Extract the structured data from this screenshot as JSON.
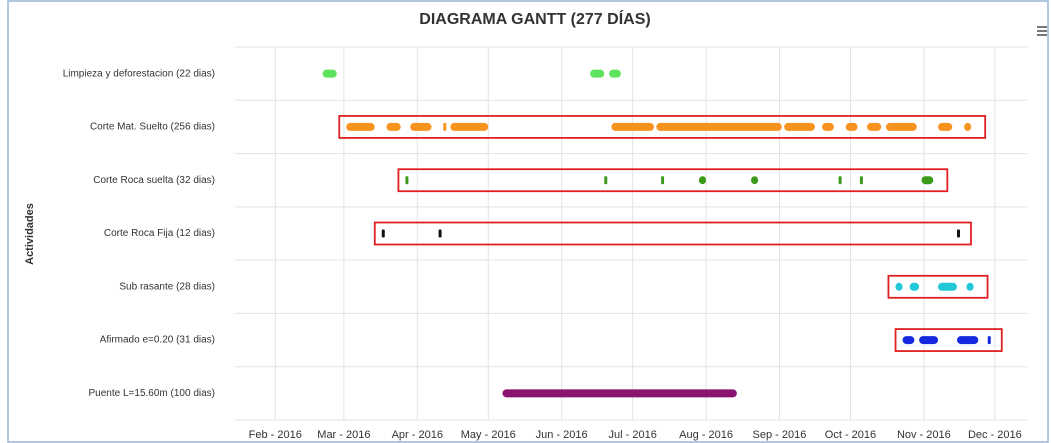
{
  "chart_data": {
    "type": "gantt",
    "title": "DIAGRAMA GANTT (277 DÍAS)",
    "y_label": "Actividades",
    "xlim": [
      "2016-01-15",
      "2016-12-15"
    ],
    "xticks": [
      {
        "value": "2016-02-01",
        "label": "Feb - 2016"
      },
      {
        "value": "2016-03-01",
        "label": "Mar - 2016"
      },
      {
        "value": "2016-04-01",
        "label": "Apr - 2016"
      },
      {
        "value": "2016-05-01",
        "label": "May - 2016"
      },
      {
        "value": "2016-06-01",
        "label": "Jun - 2016"
      },
      {
        "value": "2016-07-01",
        "label": "Jul - 2016"
      },
      {
        "value": "2016-08-01",
        "label": "Aug - 2016"
      },
      {
        "value": "2016-09-01",
        "label": "Sep - 2016"
      },
      {
        "value": "2016-10-01",
        "label": "Oct - 2016"
      },
      {
        "value": "2016-11-01",
        "label": "Nov - 2016"
      },
      {
        "value": "2016-12-01",
        "label": "Dec - 2016"
      }
    ],
    "grid": true,
    "highlight_rows": [
      1,
      2,
      3,
      4,
      5
    ],
    "highlight_color": "#e02020",
    "series": [
      {
        "name": "Limpieza y deforestacion (22 dias)",
        "color": "#5ee35e",
        "values": [
          [
            "2016-02-21",
            "2016-02-27"
          ],
          [
            "2016-06-13",
            "2016-06-19"
          ],
          [
            "2016-06-21",
            "2016-06-26"
          ]
        ]
      },
      {
        "name": "Corte Mat. Suelto (256 dias)",
        "color": "#f7931e",
        "values": [
          [
            "2016-03-02",
            "2016-03-14"
          ],
          [
            "2016-03-19",
            "2016-03-25"
          ],
          [
            "2016-03-29",
            "2016-04-07"
          ],
          [
            "2016-04-12",
            "2016-04-12"
          ],
          [
            "2016-04-15",
            "2016-05-01"
          ],
          [
            "2016-06-22",
            "2016-07-10"
          ],
          [
            "2016-07-11",
            "2016-09-02"
          ],
          [
            "2016-09-03",
            "2016-09-16"
          ],
          [
            "2016-09-19",
            "2016-09-24"
          ],
          [
            "2016-09-29",
            "2016-10-04"
          ],
          [
            "2016-10-08",
            "2016-10-14"
          ],
          [
            "2016-10-16",
            "2016-10-29"
          ],
          [
            "2016-11-07",
            "2016-11-13"
          ],
          [
            "2016-11-18",
            "2016-11-21"
          ]
        ]
      },
      {
        "name": "Corte Roca suelta (32 dias)",
        "color": "#3a9a1a",
        "values": [
          [
            "2016-03-27",
            "2016-03-27"
          ],
          [
            "2016-06-19",
            "2016-06-19"
          ],
          [
            "2016-07-13",
            "2016-07-13"
          ],
          [
            "2016-07-29",
            "2016-08-01"
          ],
          [
            "2016-08-20",
            "2016-08-23"
          ],
          [
            "2016-09-26",
            "2016-09-26"
          ],
          [
            "2016-10-05",
            "2016-10-05"
          ],
          [
            "2016-10-31",
            "2016-11-05"
          ]
        ]
      },
      {
        "name": "Corte Roca Fija (12 dias)",
        "color": "#111111",
        "values": [
          [
            "2016-03-17",
            "2016-03-17"
          ],
          [
            "2016-04-10",
            "2016-04-10"
          ],
          [
            "2016-11-15",
            "2016-11-15"
          ]
        ]
      },
      {
        "name": "Sub rasante (28 dias)",
        "color": "#22c8d8",
        "values": [
          [
            "2016-10-20",
            "2016-10-23"
          ],
          [
            "2016-10-26",
            "2016-10-30"
          ],
          [
            "2016-11-07",
            "2016-11-15"
          ],
          [
            "2016-11-19",
            "2016-11-22"
          ]
        ]
      },
      {
        "name": "Afirmado e=0.20 (31 dias)",
        "color": "#1428e0",
        "values": [
          [
            "2016-10-23",
            "2016-10-28"
          ],
          [
            "2016-10-30",
            "2016-11-07"
          ],
          [
            "2016-11-15",
            "2016-11-24"
          ],
          [
            "2016-11-28",
            "2016-11-28"
          ]
        ]
      },
      {
        "name": "Puente L=15.60m (100 dias)",
        "color": "#8b1370",
        "values": [
          [
            "2016-05-07",
            "2016-08-14"
          ]
        ]
      }
    ]
  }
}
